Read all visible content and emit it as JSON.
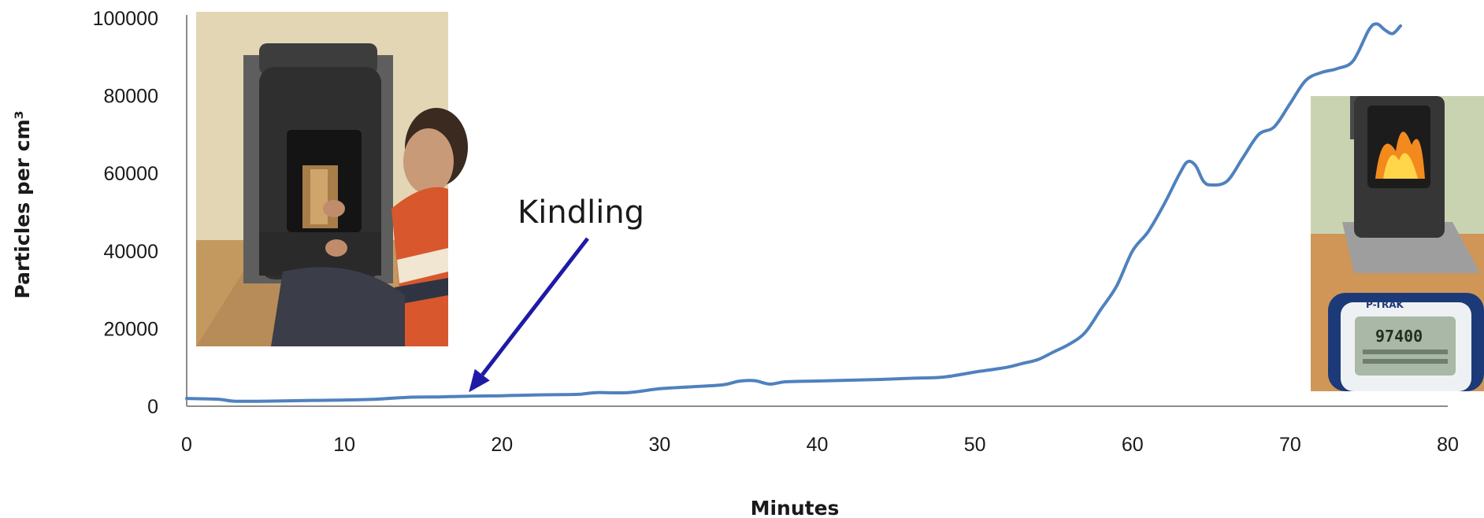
{
  "chart_data": {
    "type": "line",
    "title": "",
    "xlabel": "Minutes",
    "ylabel": "Particles per cm³",
    "xlim": [
      0,
      80
    ],
    "ylim": [
      0,
      100000
    ],
    "x_ticks": [
      "0",
      "10",
      "20",
      "30",
      "40",
      "50",
      "60",
      "70",
      "80"
    ],
    "y_ticks": [
      "0",
      "20000",
      "40000",
      "60000",
      "80000",
      "100000"
    ],
    "grid": false,
    "legend": "none",
    "series": [
      {
        "color": "#4f81bd",
        "x": [
          0,
          2,
          3,
          5,
          8,
          10,
          12,
          14,
          16,
          18,
          20,
          22,
          24,
          25,
          26,
          28,
          30,
          32,
          34,
          35,
          36,
          37,
          38,
          40,
          42,
          44,
          46,
          48,
          50,
          52,
          53,
          54,
          55,
          56,
          57,
          58,
          59,
          60,
          61,
          62,
          63,
          63.5,
          64,
          64.5,
          65,
          66,
          67,
          68,
          69,
          70,
          71,
          72,
          73,
          74,
          75,
          75.5,
          76,
          76.5,
          77
        ],
        "y": [
          2000,
          1800,
          1300,
          1300,
          1500,
          1600,
          1800,
          2300,
          2400,
          2600,
          2700,
          2900,
          3000,
          3100,
          3500,
          3500,
          4500,
          5000,
          5500,
          6400,
          6600,
          5700,
          6300,
          6500,
          6700,
          6900,
          7200,
          7500,
          8800,
          10000,
          11000,
          12000,
          14000,
          16000,
          19000,
          25000,
          31000,
          40000,
          45000,
          52000,
          60000,
          63000,
          62000,
          58000,
          57000,
          58000,
          64000,
          70000,
          72000,
          78000,
          84000,
          86000,
          87000,
          89000,
          97000,
          98500,
          97000,
          96000,
          98000
        ]
      }
    ],
    "annotations": [
      {
        "text": "Kindling",
        "x": 17.8,
        "y": 3000
      }
    ]
  },
  "photos": {
    "left": {
      "icon": "person-loading-stove-photo"
    },
    "right": {
      "icon": "burning-stove-with-particle-counter-photo",
      "counter_brand": "P-TRAK",
      "counter_reading": "97400"
    }
  }
}
